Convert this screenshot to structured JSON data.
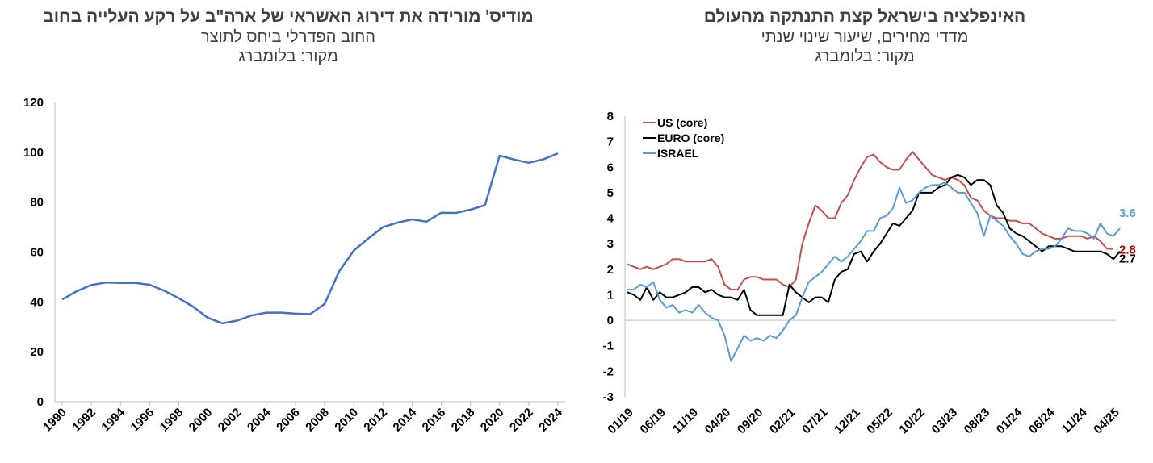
{
  "left_chart": {
    "title": "מודיס' מורידה את דירוג האשראי של ארה\"ב על רקע העלייה בחוב",
    "subtitle": "החוב הפדרלי ביחס לתוצר",
    "source": "מקור: בלומברג"
  },
  "right_chart": {
    "title": "האינפלציה בישראל קצת התנתקה מהעולם",
    "subtitle": "מדדי מחירים, שיעור שינוי שנתי",
    "source": "מקור: בלומברג"
  },
  "chart_data": [
    {
      "type": "line",
      "title": "מודיס' מורידה את דירוג האשראי של ארה\"ב על רקע העלייה בחוב",
      "subtitle": "החוב הפדרלי ביחס לתוצר",
      "xlabel": "",
      "ylabel": "",
      "ylim": [
        0,
        120
      ],
      "yticks": [
        "0",
        "20",
        "40",
        "60",
        "80",
        "100",
        "120"
      ],
      "xticks": [
        "1990",
        "1992",
        "1994",
        "1996",
        "1998",
        "2000",
        "2002",
        "2004",
        "2006",
        "2008",
        "2010",
        "2012",
        "2014",
        "2016",
        "2018",
        "2020",
        "2022",
        "2024"
      ],
      "grid": false,
      "x": [
        1990,
        1991,
        1992,
        1993,
        1994,
        1995,
        1996,
        1997,
        1998,
        1999,
        2000,
        2001,
        2002,
        2003,
        2004,
        2005,
        2006,
        2007,
        2008,
        2009,
        2010,
        2011,
        2012,
        2013,
        2014,
        2015,
        2016,
        2017,
        2018,
        2019,
        2020,
        2021,
        2022,
        2023,
        2024
      ],
      "series": [
        {
          "color": "#4472C4",
          "values": [
            41,
            44.3,
            46.8,
            47.8,
            47.6,
            47.6,
            46.9,
            44.5,
            41.5,
            38,
            33.6,
            31.4,
            32.5,
            34.6,
            35.7,
            35.7,
            35.3,
            35.1,
            39.2,
            52.3,
            60.6,
            65.5,
            70,
            71.8,
            73.1,
            72.2,
            75.8,
            75.7,
            77,
            78.8,
            98.7,
            97.1,
            95.8,
            97.2,
            99.6
          ]
        }
      ]
    },
    {
      "type": "line",
      "title": "האינפלציה בישראל קצת התנתקה מהעולם",
      "subtitle": "מדדי מחירים, שיעור שינוי שנתי",
      "xlabel": "",
      "ylabel": "",
      "ylim": [
        -3,
        8
      ],
      "yticks": [
        "-3",
        "-2",
        "-1",
        "0",
        "1",
        "2",
        "3",
        "4",
        "5",
        "6",
        "7",
        "8"
      ],
      "xticks": [
        "01/19",
        "06/19",
        "11/19",
        "04/20",
        "09/20",
        "02/21",
        "07/21",
        "12/21",
        "05/22",
        "10/22",
        "03/23",
        "08/23",
        "01/24",
        "06/24",
        "11/24",
        "04/25"
      ],
      "grid": false,
      "legend": "top-left",
      "series": [
        {
          "name": "US (core)",
          "color": "#C0504D",
          "end_label": "2.8",
          "values": [
            2.2,
            2.1,
            2,
            2.1,
            2,
            2.1,
            2.2,
            2.4,
            2.4,
            2.3,
            2.3,
            2.3,
            2.3,
            2.4,
            2.1,
            1.4,
            1.2,
            1.2,
            1.6,
            1.7,
            1.7,
            1.6,
            1.6,
            1.6,
            1.4,
            1.3,
            1.6,
            3,
            3.8,
            4.5,
            4.3,
            4,
            4,
            4.6,
            4.9,
            5.5,
            6,
            6.4,
            6.5,
            6.2,
            6,
            5.9,
            5.9,
            6.3,
            6.6,
            6.3,
            6,
            5.7,
            5.6,
            5.5,
            5.6,
            5.5,
            5.3,
            4.8,
            4.7,
            4.3,
            4.1,
            4,
            4,
            3.9,
            3.9,
            3.8,
            3.8,
            3.6,
            3.4,
            3.3,
            3.2,
            3.2,
            3.3,
            3.3,
            3.3,
            3.2,
            3.3,
            3.1,
            2.8,
            2.8
          ]
        },
        {
          "name": "EURO (core)",
          "color": "#000000",
          "end_label": "2.7",
          "values": [
            1.1,
            1,
            0.8,
            1.3,
            0.8,
            1.1,
            0.9,
            0.9,
            1,
            1.1,
            1.3,
            1.3,
            1.1,
            1.2,
            1,
            0.9,
            0.9,
            0.8,
            1.2,
            0.4,
            0.2,
            0.2,
            0.2,
            0.2,
            0.2,
            1.4,
            1.1,
            0.9,
            0.7,
            0.9,
            0.9,
            0.7,
            1.6,
            1.9,
            2,
            2.6,
            2.7,
            2.3,
            2.7,
            3,
            3.4,
            3.8,
            3.7,
            4,
            4.3,
            5,
            5,
            5,
            5.2,
            5.3,
            5.6,
            5.7,
            5.6,
            5.3,
            5.5,
            5.5,
            5.3,
            4.5,
            4.2,
            3.6,
            3.4,
            3.3,
            3.1,
            2.9,
            2.7,
            2.9,
            2.9,
            2.9,
            2.8,
            2.7,
            2.7,
            2.7,
            2.7,
            2.7,
            2.6,
            2.4,
            2.7
          ]
        },
        {
          "name": "ISRAEL",
          "color": "#5B9BD5",
          "end_label": "3.6",
          "values": [
            1.2,
            1.2,
            1.4,
            1.3,
            1.5,
            0.8,
            0.5,
            0.6,
            0.3,
            0.4,
            0.3,
            0.6,
            0.3,
            0.1,
            0,
            -0.6,
            -1.6,
            -1.1,
            -0.6,
            -0.8,
            -0.7,
            -0.8,
            -0.6,
            -0.7,
            -0.4,
            0,
            0.2,
            0.9,
            1.5,
            1.7,
            1.9,
            2.2,
            2.5,
            2.3,
            2.5,
            2.8,
            3.1,
            3.5,
            3.5,
            4,
            4.1,
            4.4,
            5.2,
            4.6,
            4.7,
            5,
            5.2,
            5.3,
            5.3,
            5.4,
            5.2,
            5,
            5,
            4.6,
            4.2,
            3.3,
            4.1,
            3.9,
            3.7,
            3.3,
            3,
            2.6,
            2.5,
            2.7,
            2.8,
            2.8,
            2.9,
            3.2,
            3.6,
            3.5,
            3.5,
            3.4,
            3.2,
            3.8,
            3.4,
            3.3,
            3.6
          ]
        }
      ]
    }
  ]
}
